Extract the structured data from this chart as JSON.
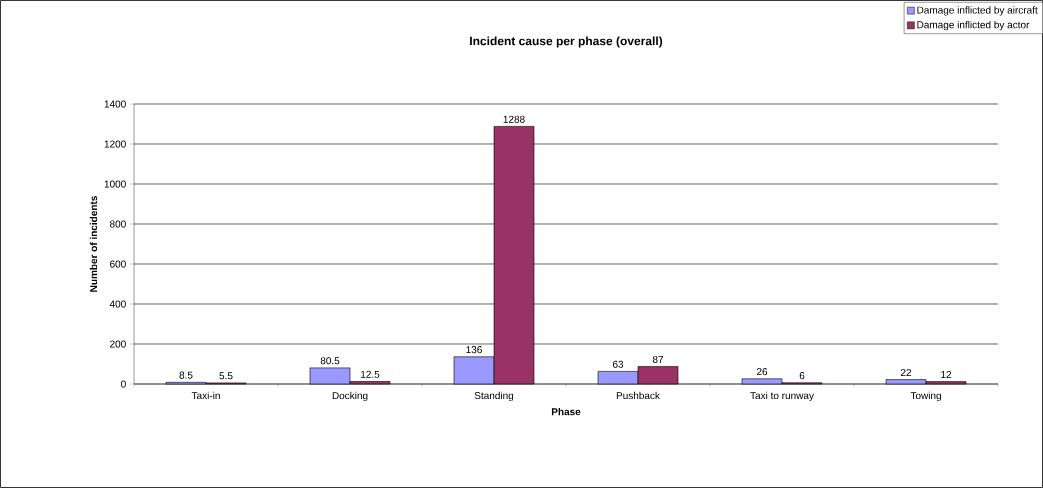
{
  "chart_data": {
    "type": "bar",
    "title": "Incident cause per phase (overall)",
    "xlabel": "Phase",
    "ylabel": "Number of incidents",
    "categories": [
      "Taxi-in",
      "Docking",
      "Standing",
      "Pushback",
      "Taxi to runway",
      "Towing"
    ],
    "series": [
      {
        "name": "Damage inflicted by aircraft",
        "color": "#9999ff",
        "values": [
          8.5,
          80.5,
          136,
          63,
          26,
          22
        ]
      },
      {
        "name": "Damage inflicted by actor",
        "color": "#993366",
        "values": [
          5.5,
          12.5,
          1288,
          87,
          6,
          12
        ]
      }
    ],
    "ylim": [
      0,
      1400
    ],
    "yticks": [
      0,
      200,
      400,
      600,
      800,
      1000,
      1200,
      1400
    ],
    "grid": "y",
    "legend": "top right",
    "data_labels": true
  }
}
